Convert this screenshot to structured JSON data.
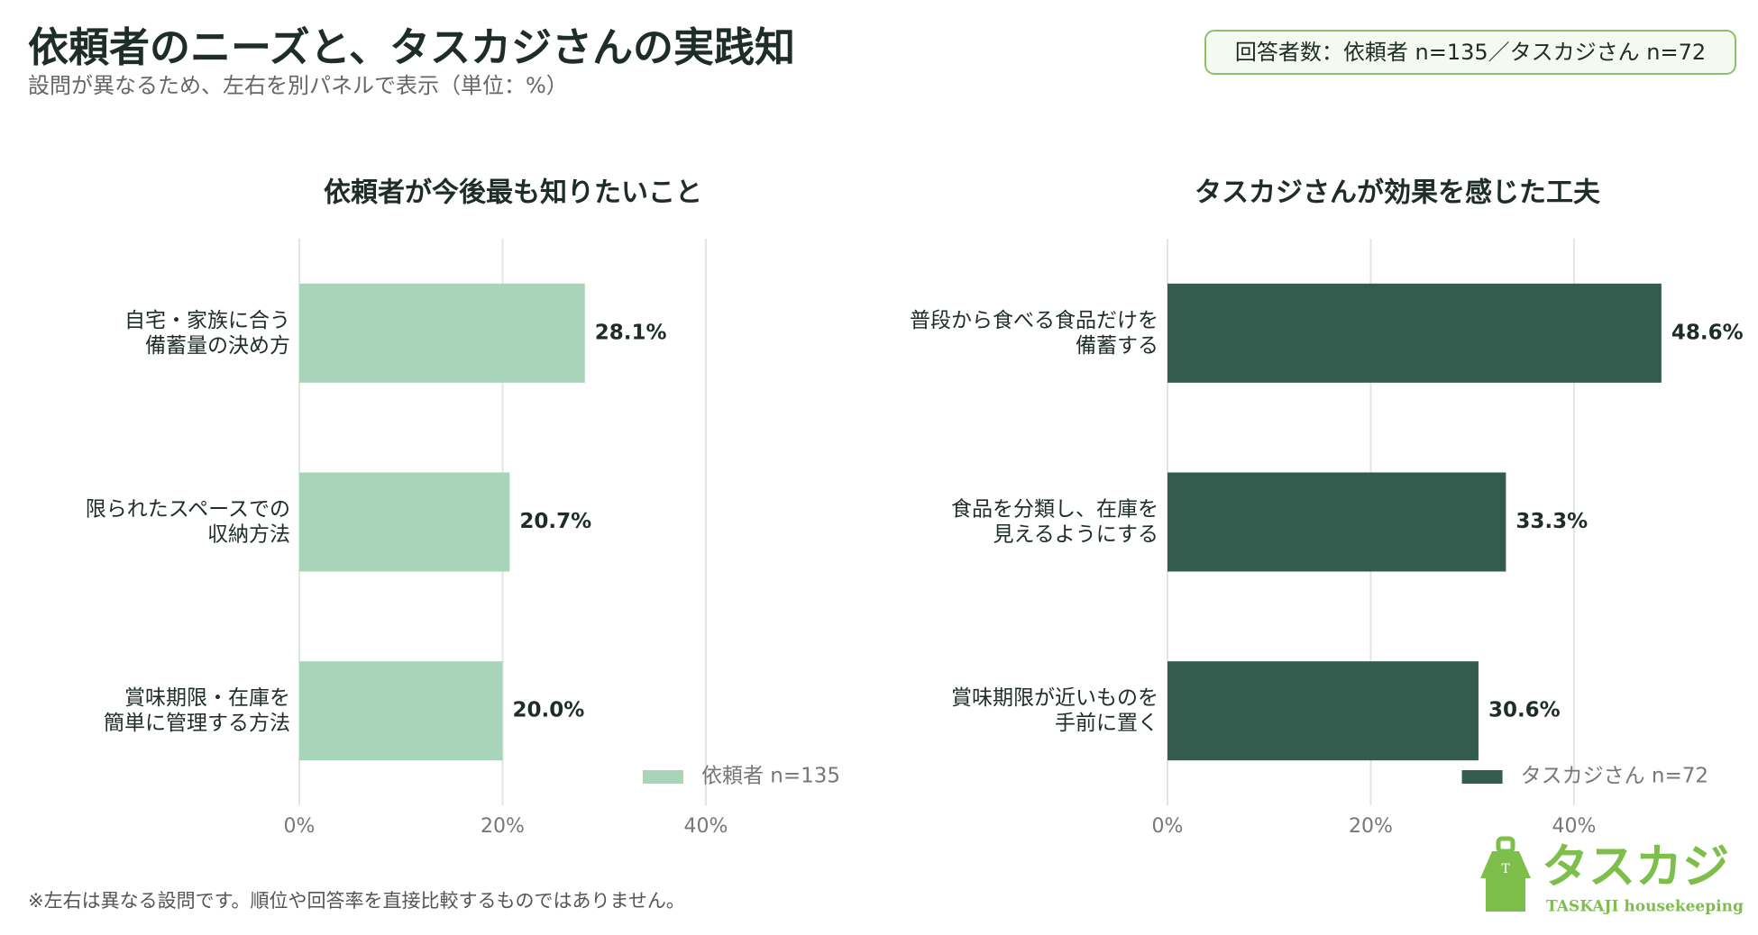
{
  "header": {
    "title": "依頼者のニーズと、タスカジさんの実践知",
    "subtitle": "設問が異なるため、左右を別パネルで表示（単位：%）",
    "badge": "回答者数：依頼者 n=135／タスカジさん n=72"
  },
  "chart_data": [
    {
      "type": "bar",
      "orientation": "horizontal",
      "title": "依頼者が今後最も知りたいこと",
      "categories": [
        [
          "自宅・家族に合う",
          "備蓄量の決め方"
        ],
        [
          "限られたスペースでの",
          "収納方法"
        ],
        [
          "賞味期限・在庫を",
          "簡単に管理する方法"
        ]
      ],
      "series": [
        {
          "name": "依頼者 n=135",
          "color": "#a8d5b9",
          "values": [
            28.1,
            20.7,
            20.0
          ],
          "value_labels": [
            "28.1%",
            "20.7%",
            "20.0%"
          ]
        }
      ],
      "xlim": [
        0,
        55
      ],
      "xticks": [
        {
          "value": 0,
          "label": "0%"
        },
        {
          "value": 20,
          "label": "20%"
        },
        {
          "value": 40,
          "label": "40%"
        }
      ],
      "grid": true,
      "legend": "lower right"
    },
    {
      "type": "bar",
      "orientation": "horizontal",
      "title": "タスカジさんが効果を感じた工夫",
      "categories": [
        [
          "普段から食べる食品だけを",
          "備蓄する"
        ],
        [
          "食品を分類し、在庫を",
          "見えるようにする"
        ],
        [
          "賞味期限が近いものを",
          "手前に置く"
        ]
      ],
      "series": [
        {
          "name": "タスカジさん n=72",
          "color": "#335c4e",
          "values": [
            48.6,
            33.3,
            30.6
          ],
          "value_labels": [
            "48.6%",
            "33.3%",
            "30.6%"
          ]
        }
      ],
      "xlim": [
        0,
        55
      ],
      "xticks": [
        {
          "value": 0,
          "label": "0%"
        },
        {
          "value": 20,
          "label": "20%"
        },
        {
          "value": 40,
          "label": "40%"
        }
      ],
      "grid": true,
      "legend": "lower right"
    }
  ],
  "footnote": "※左右は異なる設問です。順位や回答率を直接比較するものではありません。",
  "logo": {
    "text": "タスカジ",
    "subtext": "TASKAJI housekeeping"
  }
}
